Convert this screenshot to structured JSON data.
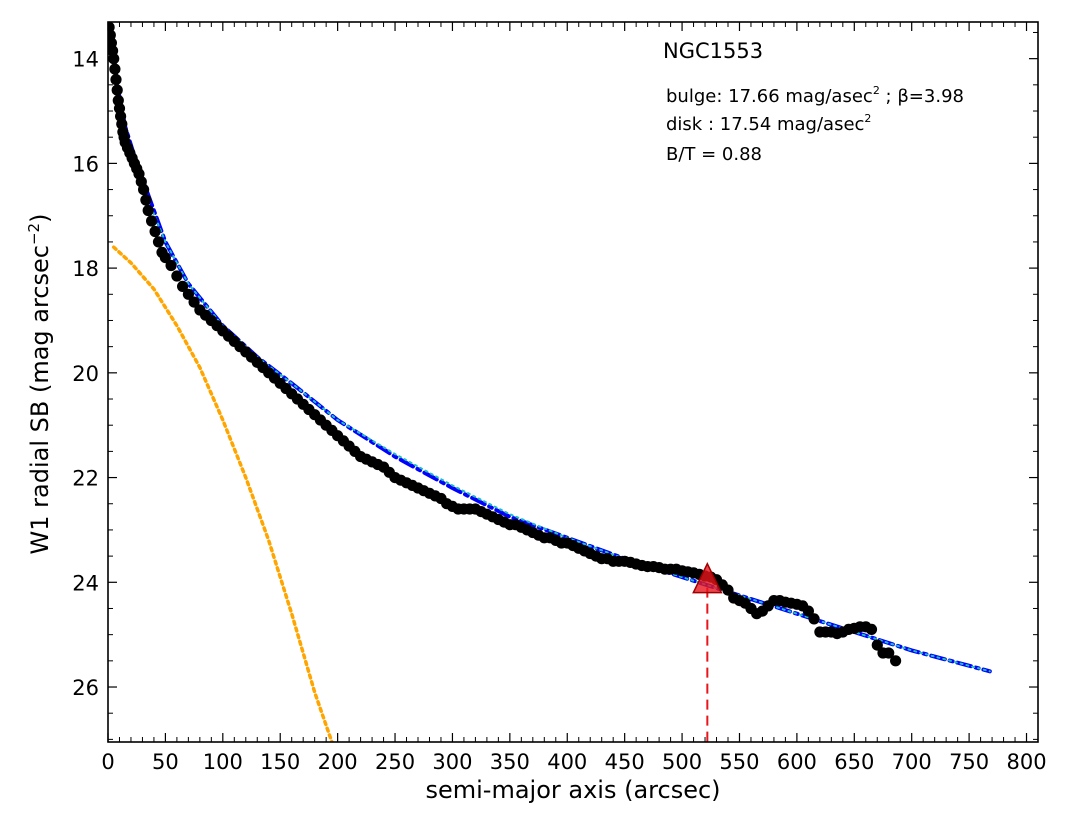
{
  "chart_data": {
    "type": "scatter",
    "title": "NGC1553",
    "xlabel": "semi-major axis (arcsec)",
    "ylabel": "W1 radial SB (mag arcsec$^{-2}$)",
    "ylabel_parts": {
      "main": "W1 radial SB (mag arcsec",
      "sup": "−2",
      "close": ")"
    },
    "xlim": [
      0,
      810
    ],
    "ylim": [
      27.05,
      13.3
    ],
    "y_inverted": true,
    "grid": false,
    "xticks": [
      0,
      50,
      100,
      150,
      200,
      250,
      300,
      350,
      400,
      450,
      500,
      550,
      600,
      650,
      700,
      750,
      800
    ],
    "xtick_labels": [
      "0",
      "50",
      "100",
      "150",
      "200",
      "250",
      "300",
      "350",
      "400",
      "450",
      "500",
      "550",
      "600",
      "650",
      "700",
      "750",
      "800"
    ],
    "yticks": [
      14,
      16,
      18,
      20,
      22,
      24,
      26
    ],
    "ytick_labels": [
      "14",
      "16",
      "18",
      "20",
      "22",
      "24",
      "26"
    ],
    "annotations": {
      "bulge_prefix": "bulge: 17.66 mag/asec",
      "bulge_sup": "2",
      "bulge_beta": " ; β=3.98",
      "disk_prefix": "disk  : 17.54 mag/asec",
      "disk_sup": "2",
      "bt": "B/T = 0.88"
    },
    "marker": {
      "x": 522,
      "y": 23.95,
      "color": "#e8151b",
      "label": ""
    },
    "series": [
      {
        "kind": "points",
        "color": "#000000",
        "x": [
          1,
          2,
          3,
          4,
          5,
          6,
          7,
          8,
          9,
          10,
          11,
          12,
          13,
          14,
          15,
          17,
          19,
          21,
          23,
          25,
          27,
          29,
          31,
          33,
          35,
          38,
          41,
          44,
          47,
          50,
          55,
          60,
          65,
          70,
          75,
          80,
          85,
          90,
          95,
          100,
          105,
          110,
          115,
          120,
          125,
          130,
          135,
          140,
          145,
          150,
          155,
          160,
          165,
          170,
          175,
          180,
          185,
          190,
          195,
          200,
          205,
          210,
          215,
          220,
          225,
          230,
          235,
          240,
          245,
          250,
          255,
          260,
          265,
          270,
          275,
          280,
          285,
          290,
          295,
          300,
          305,
          310,
          315,
          320,
          325,
          330,
          335,
          340,
          345,
          350,
          355,
          360,
          365,
          370,
          375,
          380,
          385,
          390,
          395,
          400,
          405,
          410,
          415,
          420,
          425,
          430,
          435,
          440,
          445,
          450,
          455,
          460,
          465,
          470,
          475,
          480,
          485,
          490,
          495,
          500,
          505,
          510,
          515,
          520,
          525,
          530,
          535,
          540,
          545,
          550,
          555,
          560,
          565,
          570,
          575,
          580,
          585,
          590,
          595,
          600,
          605,
          610,
          615,
          620,
          625,
          630,
          635,
          640,
          645,
          650,
          655,
          660,
          665,
          670,
          675,
          680,
          686
        ],
        "y": [
          13.4,
          13.55,
          13.7,
          13.85,
          14.0,
          14.2,
          14.4,
          14.6,
          14.8,
          14.95,
          15.1,
          15.25,
          15.4,
          15.5,
          15.6,
          15.7,
          15.8,
          15.9,
          16.0,
          16.1,
          16.2,
          16.35,
          16.5,
          16.7,
          16.9,
          17.1,
          17.3,
          17.5,
          17.7,
          17.8,
          17.95,
          18.15,
          18.35,
          18.5,
          18.65,
          18.8,
          18.9,
          19.0,
          19.1,
          19.2,
          19.3,
          19.4,
          19.5,
          19.6,
          19.7,
          19.8,
          19.9,
          20.0,
          20.1,
          20.2,
          20.3,
          20.4,
          20.5,
          20.6,
          20.7,
          20.8,
          20.9,
          21.0,
          21.1,
          21.2,
          21.3,
          21.4,
          21.5,
          21.6,
          21.65,
          21.7,
          21.75,
          21.8,
          21.9,
          22.0,
          22.05,
          22.1,
          22.15,
          22.2,
          22.25,
          22.3,
          22.35,
          22.4,
          22.5,
          22.55,
          22.6,
          22.6,
          22.6,
          22.6,
          22.65,
          22.7,
          22.75,
          22.8,
          22.85,
          22.9,
          22.9,
          22.95,
          23.0,
          23.05,
          23.1,
          23.15,
          23.15,
          23.2,
          23.25,
          23.25,
          23.3,
          23.35,
          23.4,
          23.45,
          23.5,
          23.55,
          23.55,
          23.6,
          23.6,
          23.6,
          23.62,
          23.65,
          23.68,
          23.7,
          23.7,
          23.72,
          23.75,
          23.75,
          23.75,
          23.78,
          23.8,
          23.82,
          23.85,
          23.88,
          23.9,
          23.95,
          24.05,
          24.15,
          24.3,
          24.35,
          24.4,
          24.5,
          24.6,
          24.55,
          24.45,
          24.35,
          24.35,
          24.38,
          24.4,
          24.42,
          24.45,
          24.55,
          24.7,
          24.95,
          24.95,
          24.95,
          24.98,
          24.95,
          24.9,
          24.88,
          24.85,
          24.85,
          24.9,
          25.2,
          25.35,
          25.35,
          25.5
        ]
      },
      {
        "kind": "total_model",
        "color": "#0000ff",
        "linestyle": "dash-dot",
        "x": [
          3,
          8,
          15,
          25,
          35,
          50,
          70,
          100,
          130,
          160,
          200,
          250,
          300,
          350,
          400,
          450,
          500,
          550,
          600,
          650,
          700,
          768
        ],
        "y": [
          13.55,
          14.5,
          15.3,
          16.0,
          16.6,
          17.5,
          18.3,
          19.1,
          19.7,
          20.2,
          20.9,
          21.6,
          22.2,
          22.75,
          23.15,
          23.55,
          23.9,
          24.25,
          24.6,
          24.95,
          25.3,
          25.7
        ]
      },
      {
        "kind": "disk_model",
        "color": "#1fbfbf",
        "linestyle": "dotted",
        "x": [
          25,
          35,
          50,
          70,
          100,
          130,
          160,
          200,
          250,
          300,
          350,
          400,
          450,
          500,
          550,
          600,
          650,
          700,
          768
        ],
        "y": [
          16.2,
          16.7,
          17.5,
          18.3,
          19.1,
          19.7,
          20.2,
          20.9,
          21.55,
          22.15,
          22.7,
          23.15,
          23.55,
          23.9,
          24.25,
          24.6,
          24.95,
          25.3,
          25.7
        ]
      },
      {
        "kind": "bulge_model",
        "color": "#ffa500",
        "linestyle": "dotted",
        "x": [
          5,
          20,
          40,
          60,
          80,
          100,
          120,
          140,
          160,
          180,
          195
        ],
        "y": [
          17.6,
          17.9,
          18.4,
          19.1,
          19.9,
          20.9,
          22.0,
          23.2,
          24.6,
          26.1,
          27.05
        ]
      }
    ]
  }
}
